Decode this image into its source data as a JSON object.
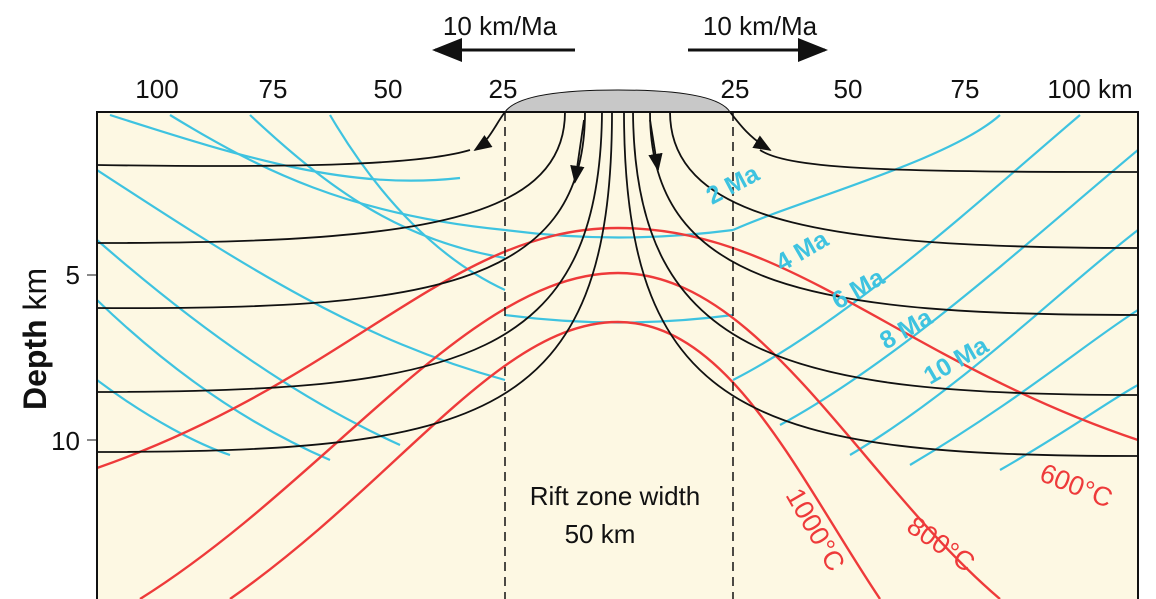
{
  "arrows": [
    {
      "label": "10 km/Ma"
    },
    {
      "label": "10 km/Ma"
    }
  ],
  "top_axis": {
    "ticks": [
      "100",
      "75",
      "50",
      "25",
      "25",
      "50",
      "75",
      "100 km"
    ]
  },
  "depth_axis": {
    "title": "Depth",
    "unit": "km",
    "ticks": [
      "5",
      "10"
    ]
  },
  "rift_zone": {
    "label": "Rift zone width",
    "width": "50 km"
  },
  "isochrons": [
    "2 Ma",
    "4 Ma",
    "6 Ma",
    "8 Ma",
    "10 Ma"
  ],
  "isotherms": [
    "600°C",
    "800°C",
    "1000°C"
  ]
}
